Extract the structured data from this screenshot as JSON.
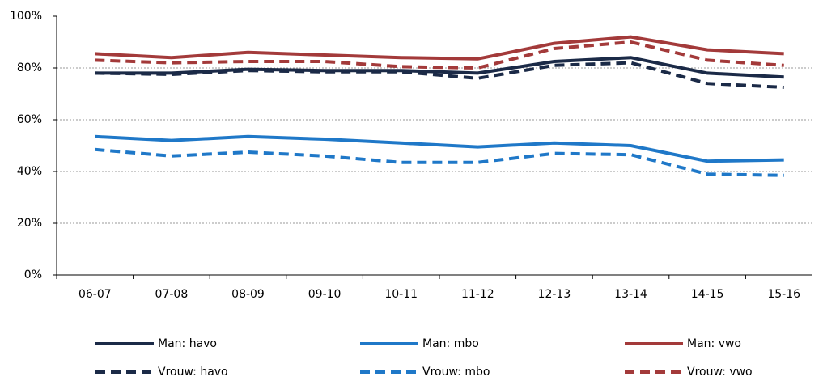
{
  "chart_data": {
    "type": "line",
    "categories": [
      "06-07",
      "07-08",
      "08-09",
      "09-10",
      "10-11",
      "11-12",
      "12-13",
      "13-14",
      "14-15",
      "15-16"
    ],
    "ylim": [
      0,
      100
    ],
    "yticks": [
      {
        "value": 0,
        "label": "0%"
      },
      {
        "value": 20,
        "label": "20%"
      },
      {
        "value": 40,
        "label": "40%"
      },
      {
        "value": 60,
        "label": "60%"
      },
      {
        "value": 80,
        "label": "80%"
      },
      {
        "value": 100,
        "label": "100%"
      }
    ],
    "grid": true,
    "legend": "bottom",
    "series": [
      {
        "name": "Man: havo",
        "color": "#1b2a47",
        "line_style": "solid",
        "values": [
          78,
          78,
          79.5,
          79,
          79,
          78,
          82.5,
          84,
          78,
          76.5
        ]
      },
      {
        "name": "Man: mbo",
        "color": "#1f78c8",
        "line_style": "solid",
        "values": [
          53.5,
          52,
          53.5,
          52.5,
          51,
          49.5,
          51,
          50,
          44,
          44.5
        ]
      },
      {
        "name": "Man: vwo",
        "color": "#a33a3a",
        "line_style": "solid",
        "values": [
          85.5,
          84,
          86,
          85,
          84,
          83.5,
          89.5,
          92,
          87,
          85.5
        ]
      },
      {
        "name": "Vrouw: havo",
        "color": "#1b2a47",
        "line_style": "dashed",
        "values": [
          78,
          77.5,
          79,
          78.5,
          78.5,
          76,
          81,
          82,
          74,
          72.5
        ]
      },
      {
        "name": "Vrouw: mbo",
        "color": "#1f78c8",
        "line_style": "dashed",
        "values": [
          48.5,
          46,
          47.5,
          46,
          43.5,
          43.5,
          47,
          46.5,
          39,
          38.5
        ]
      },
      {
        "name": "Vrouw: vwo",
        "color": "#a33a3a",
        "line_style": "dashed",
        "values": [
          83,
          82,
          82.5,
          82.5,
          80.5,
          80,
          87.5,
          90,
          83,
          81
        ]
      }
    ]
  }
}
